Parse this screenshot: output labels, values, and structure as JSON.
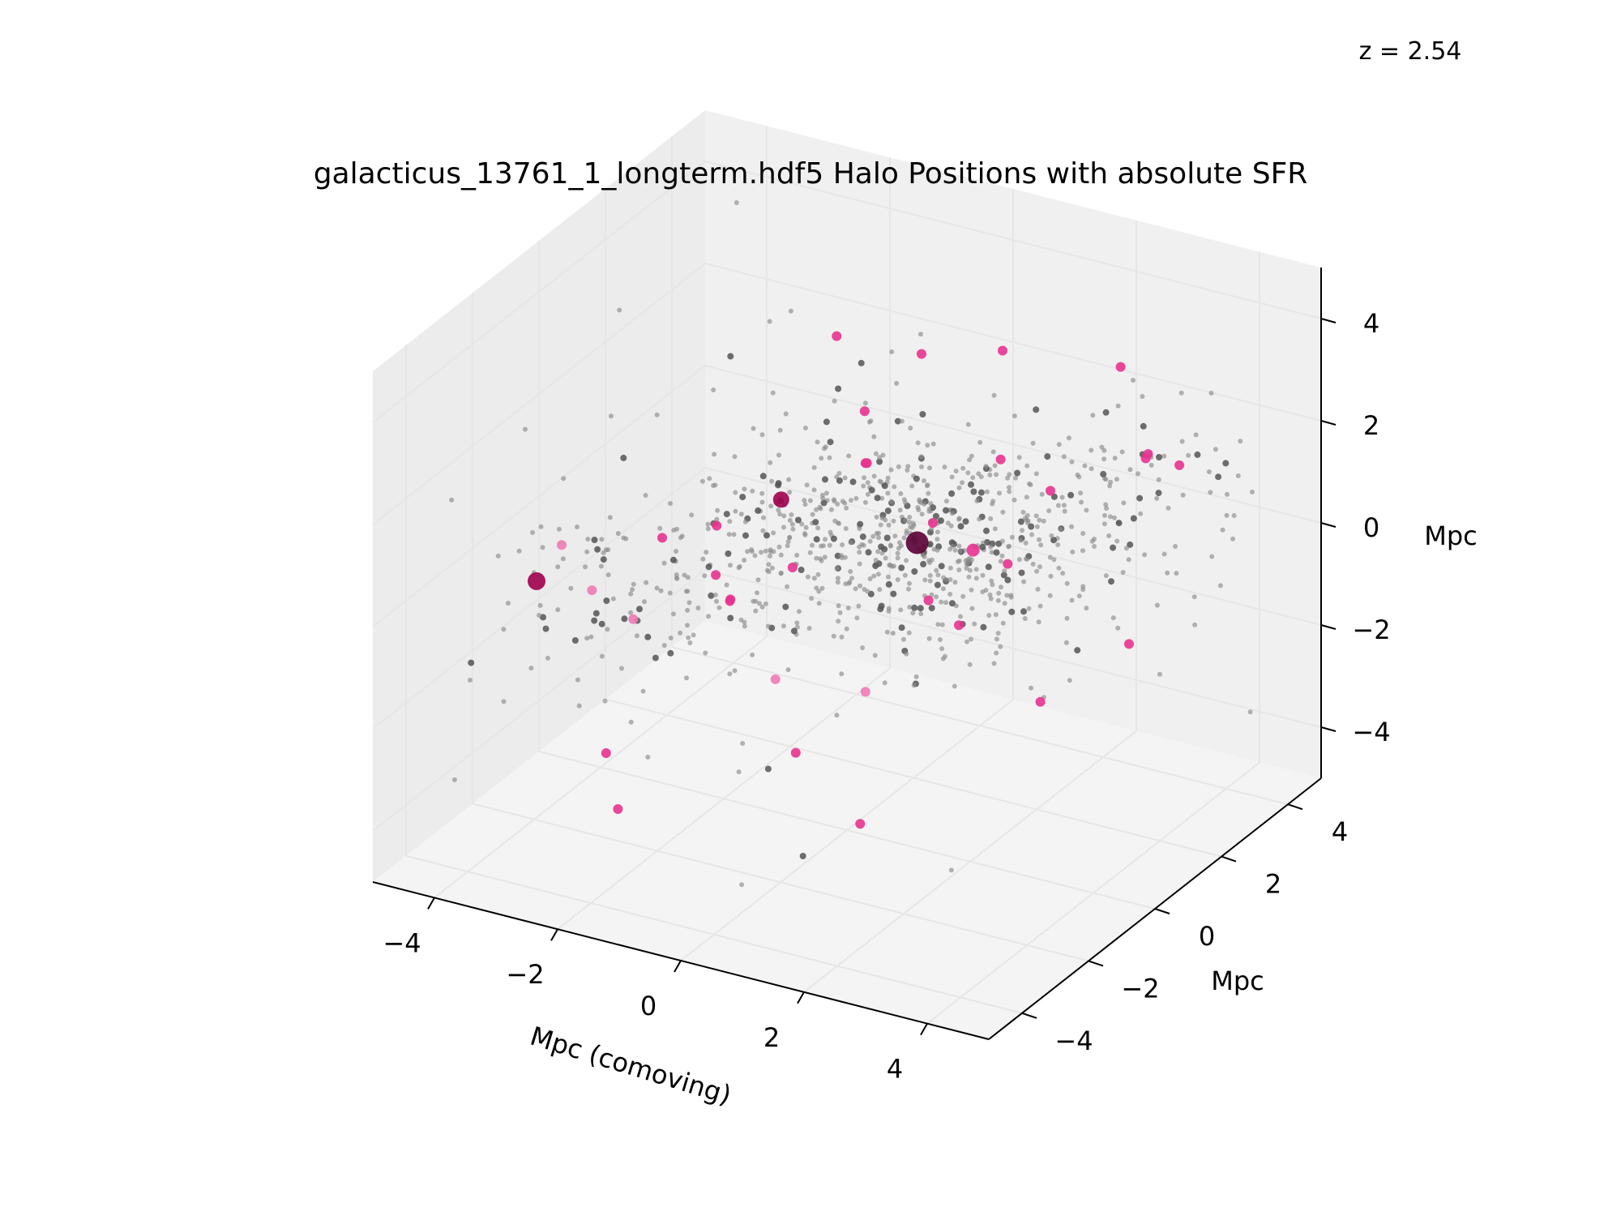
{
  "chart_data": {
    "type": "scatter",
    "projection": "3d",
    "title": "galacticus_13761_1_longterm.hdf5 Halo Positions with absolute SFR",
    "annotation": "z = 2.54",
    "xlabel": "Mpc (comoving)",
    "ylabel": "Mpc",
    "zlabel": "Mpc",
    "xlim": [
      -5,
      5
    ],
    "ylim": [
      -5,
      5
    ],
    "zlim": [
      -5,
      5
    ],
    "xticks": [
      "−4",
      "−2",
      "0",
      "2",
      "4"
    ],
    "yticks": [
      "−4",
      "−2",
      "0",
      "2",
      "4"
    ],
    "zticks": [
      "−4",
      "−2",
      "0",
      "2",
      "4"
    ],
    "grid": true,
    "colors": {
      "halo_gray": "#8c8c8c",
      "halo_dark": "#555555",
      "sfr_pink": "#e8338f",
      "sfr_light": "#f07ab4",
      "sfr_dark": "#a0004f",
      "sfr_darkest": "#5a0035",
      "pane": "#f2f2f2",
      "grid": "#e6e6e6"
    },
    "series": [
      {
        "role": "star-forming halos",
        "points": [
          {
            "x": 0.6,
            "y": 1.0,
            "z": 0.3,
            "size": 14,
            "color": "#5a0035"
          },
          {
            "x": -1.5,
            "y": 0.8,
            "z": 0.6,
            "size": 10,
            "color": "#a0004f"
          },
          {
            "x": -4.5,
            "y": -1.0,
            "z": -1.0,
            "size": 11,
            "color": "#a0004f"
          },
          {
            "x": 1.4,
            "y": 1.2,
            "z": 0.3,
            "size": 8,
            "color": "#e8338f"
          },
          {
            "x": -1.3,
            "y": 2.1,
            "z": 3.2,
            "size": 6,
            "color": "#e8338f"
          },
          {
            "x": -0.3,
            "y": 2.8,
            "z": 2.8,
            "size": 6,
            "color": "#e8338f"
          },
          {
            "x": 0.8,
            "y": 3.2,
            "z": 3.0,
            "size": 6,
            "color": "#e8338f"
          },
          {
            "x": 2.5,
            "y": 3.6,
            "z": 3.0,
            "size": 6,
            "color": "#e8338f"
          },
          {
            "x": -0.9,
            "y": 2.2,
            "z": 1.8,
            "size": 6,
            "color": "#e8338f"
          },
          {
            "x": 3.0,
            "y": 3.5,
            "z": 1.5,
            "size": 6,
            "color": "#e8338f"
          },
          {
            "x": 2.8,
            "y": 3.8,
            "z": 1.2,
            "size": 6,
            "color": "#e8338f"
          },
          {
            "x": 3.4,
            "y": 3.7,
            "z": 1.3,
            "size": 6,
            "color": "#e8338f"
          },
          {
            "x": 1.9,
            "y": 2.6,
            "z": 0.9,
            "size": 6,
            "color": "#e8338f"
          },
          {
            "x": -2.6,
            "y": 0.9,
            "z": -0.3,
            "size": 6,
            "color": "#e8338f"
          },
          {
            "x": -2.4,
            "y": 0.5,
            "z": -1.0,
            "size": 6,
            "color": "#e8338f"
          },
          {
            "x": -1.1,
            "y": 0.4,
            "z": -0.4,
            "size": 6,
            "color": "#e8338f"
          },
          {
            "x": -0.7,
            "y": 1.9,
            "z": 1.0,
            "size": 6,
            "color": "#e8338f"
          },
          {
            "x": -0.4,
            "y": 1.3,
            "z": 1.4,
            "size": 6,
            "color": "#e8338f"
          },
          {
            "x": 1.2,
            "y": 2.4,
            "z": 1.4,
            "size": 6,
            "color": "#e8338f"
          },
          {
            "x": 1.8,
            "y": 1.5,
            "z": 0.0,
            "size": 6,
            "color": "#e8338f"
          },
          {
            "x": -3.0,
            "y": 0.0,
            "z": -0.2,
            "size": 6,
            "color": "#e8338f"
          },
          {
            "x": -2.0,
            "y": 0.2,
            "z": -1.2,
            "size": 6,
            "color": "#e8338f"
          },
          {
            "x": -1.9,
            "y": 0.0,
            "z": -1.1,
            "size": 6,
            "color": "#e8338f"
          },
          {
            "x": -0.4,
            "y": -0.8,
            "z": -3.2,
            "size": 6,
            "color": "#e8338f"
          },
          {
            "x": -2.1,
            "y": -3.0,
            "z": -3.7,
            "size": 6,
            "color": "#e8338f"
          },
          {
            "x": 2.6,
            "y": 1.0,
            "z": -2.2,
            "size": 6,
            "color": "#e8338f"
          },
          {
            "x": 3.5,
            "y": 2.0,
            "z": -1.3,
            "size": 6,
            "color": "#e8338f"
          },
          {
            "x": 1.6,
            "y": 0.4,
            "z": -0.7,
            "size": 6,
            "color": "#e8338f"
          },
          {
            "x": 0.8,
            "y": 1.1,
            "z": 0.7,
            "size": 6,
            "color": "#e8338f"
          },
          {
            "x": 1.0,
            "y": 0.6,
            "z": -0.5,
            "size": 6,
            "color": "#e8338f"
          },
          {
            "x": -3.6,
            "y": -1.0,
            "z": -0.9,
            "size": 6,
            "color": "#f07ab4"
          },
          {
            "x": -3.2,
            "y": -0.5,
            "z": -1.6,
            "size": 6,
            "color": "#f07ab4"
          },
          {
            "x": -4.2,
            "y": -0.8,
            "z": -0.3,
            "size": 6,
            "color": "#f07ab4"
          },
          {
            "x": 0.3,
            "y": 0.0,
            "z": -2.2,
            "size": 6,
            "color": "#f07ab4"
          },
          {
            "x": -1.0,
            "y": -0.3,
            "z": -2.2,
            "size": 6,
            "color": "#f07ab4"
          },
          {
            "x": -2.4,
            "y": -2.8,
            "z": -2.8,
            "size": 6,
            "color": "#e8338f"
          },
          {
            "x": 0.7,
            "y": -0.9,
            "z": -4.2,
            "size": 6,
            "color": "#e8338f"
          }
        ]
      },
      {
        "role": "halos",
        "color": "#8c8c8c",
        "count": 900,
        "distribution": "filament from (-4,-1,-1) to (4,3,1.5), clustered near (0.5,1,0.3)"
      }
    ]
  }
}
